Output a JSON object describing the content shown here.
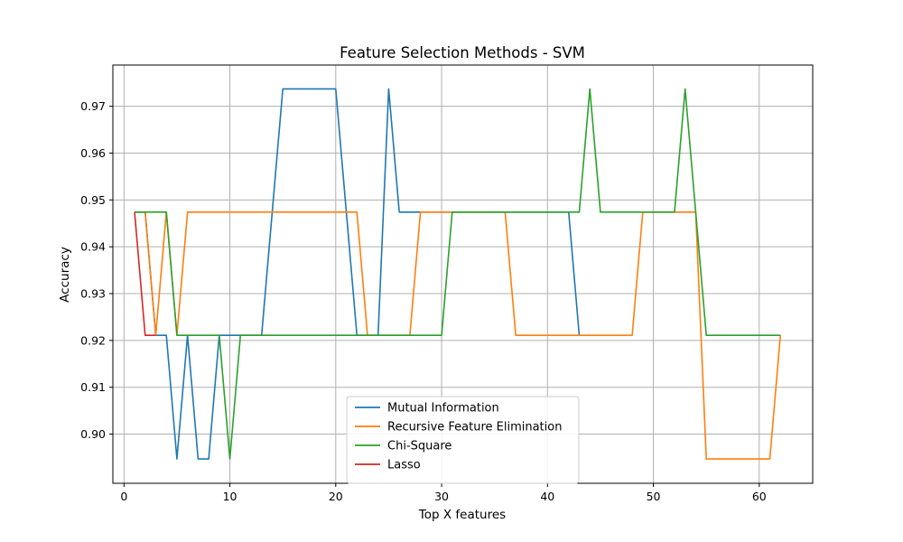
{
  "chart_data": {
    "type": "line",
    "title": "Feature Selection Methods - SVM",
    "xlabel": "Top X features",
    "ylabel": "Accuracy",
    "xlim": [
      -1.05,
      65.05
    ],
    "ylim": [
      0.8895,
      0.9788
    ],
    "xticks": [
      0,
      10,
      20,
      30,
      40,
      50,
      60
    ],
    "xtick_labels": [
      "0",
      "10",
      "20",
      "30",
      "40",
      "50",
      "60"
    ],
    "yticks": [
      0.9,
      0.91,
      0.92,
      0.93,
      0.94,
      0.95,
      0.96,
      0.97
    ],
    "ytick_labels": [
      "0.90",
      "0.91",
      "0.92",
      "0.93",
      "0.94",
      "0.95",
      "0.96",
      "0.97"
    ],
    "grid": true,
    "legend_position": "lower-center",
    "series": [
      {
        "name": "Mutual Information",
        "color": "#1f77b4",
        "x": [
          1,
          2,
          3,
          4,
          5,
          6,
          7,
          8,
          9,
          10,
          11,
          12,
          13,
          14,
          15,
          16,
          17,
          18,
          19,
          20,
          21,
          22,
          23,
          24,
          25,
          26,
          27,
          28,
          29,
          30,
          31,
          32,
          33,
          34,
          35,
          36,
          37,
          38,
          39,
          40,
          41,
          42,
          43
        ],
        "values": [
          0.9474,
          0.9474,
          0.9211,
          0.9211,
          0.8947,
          0.9211,
          0.8947,
          0.8947,
          0.9211,
          0.9211,
          0.9211,
          0.9211,
          0.9211,
          0.9474,
          0.9737,
          0.9737,
          0.9737,
          0.9737,
          0.9737,
          0.9737,
          0.9474,
          0.9211,
          0.9211,
          0.9211,
          0.9737,
          0.9474,
          0.9474,
          0.9474,
          0.9474,
          0.9474,
          0.9474,
          0.9474,
          0.9474,
          0.9474,
          0.9474,
          0.9474,
          0.9474,
          0.9474,
          0.9474,
          0.9474,
          0.9474,
          0.9474,
          0.9211
        ]
      },
      {
        "name": "Recursive Feature Elimination",
        "color": "#ff7f0e",
        "x": [
          1,
          2,
          3,
          4,
          5,
          6,
          7,
          8,
          9,
          10,
          11,
          12,
          13,
          14,
          15,
          16,
          17,
          18,
          19,
          20,
          21,
          22,
          23,
          24,
          25,
          26,
          27,
          28,
          29,
          30,
          31,
          32,
          33,
          34,
          35,
          36,
          37,
          38,
          39,
          40,
          41,
          42,
          43,
          44,
          45,
          46,
          47,
          48,
          49,
          50,
          51,
          52,
          53,
          54,
          55,
          56,
          57,
          58,
          59,
          60,
          61,
          62
        ],
        "values": [
          0.9474,
          0.9474,
          0.9211,
          0.9474,
          0.9211,
          0.9474,
          0.9474,
          0.9474,
          0.9474,
          0.9474,
          0.9474,
          0.9474,
          0.9474,
          0.9474,
          0.9474,
          0.9474,
          0.9474,
          0.9474,
          0.9474,
          0.9474,
          0.9474,
          0.9474,
          0.9211,
          0.9211,
          0.9211,
          0.9211,
          0.9211,
          0.9474,
          0.9474,
          0.9474,
          0.9474,
          0.9474,
          0.9474,
          0.9474,
          0.9474,
          0.9474,
          0.9211,
          0.9211,
          0.9211,
          0.9211,
          0.9211,
          0.9211,
          0.9211,
          0.9211,
          0.9211,
          0.9211,
          0.9211,
          0.9211,
          0.9474,
          0.9474,
          0.9474,
          0.9474,
          0.9474,
          0.9474,
          0.8947,
          0.8947,
          0.8947,
          0.8947,
          0.8947,
          0.8947,
          0.8947,
          0.9211
        ]
      },
      {
        "name": "Chi-Square",
        "color": "#2ca02c",
        "x": [
          1,
          2,
          3,
          4,
          5,
          6,
          7,
          8,
          9,
          10,
          11,
          12,
          13,
          14,
          15,
          16,
          17,
          18,
          19,
          20,
          21,
          22,
          23,
          24,
          25,
          26,
          27,
          28,
          29,
          30,
          31,
          32,
          33,
          34,
          35,
          36,
          37,
          38,
          39,
          40,
          41,
          42,
          43,
          44,
          45,
          46,
          47,
          48,
          49,
          50,
          51,
          52,
          53,
          54,
          55,
          56,
          57,
          58,
          59,
          60,
          61,
          62
        ],
        "values": [
          0.9474,
          0.9474,
          0.9474,
          0.9474,
          0.9211,
          0.9211,
          0.9211,
          0.9211,
          0.9211,
          0.8947,
          0.9211,
          0.9211,
          0.9211,
          0.9211,
          0.9211,
          0.9211,
          0.9211,
          0.9211,
          0.9211,
          0.9211,
          0.9211,
          0.9211,
          0.9211,
          0.9211,
          0.9211,
          0.9211,
          0.9211,
          0.9211,
          0.9211,
          0.9211,
          0.9474,
          0.9474,
          0.9474,
          0.9474,
          0.9474,
          0.9474,
          0.9474,
          0.9474,
          0.9474,
          0.9474,
          0.9474,
          0.9474,
          0.9474,
          0.9737,
          0.9474,
          0.9474,
          0.9474,
          0.9474,
          0.9474,
          0.9474,
          0.9474,
          0.9474,
          0.9737,
          0.9474,
          0.9211,
          0.9211,
          0.9211,
          0.9211,
          0.9211,
          0.9211,
          0.9211,
          0.9211
        ]
      },
      {
        "name": "Lasso",
        "color": "#d62728",
        "x": [
          1,
          2,
          3
        ],
        "values": [
          0.9474,
          0.9211,
          0.9211
        ]
      }
    ]
  }
}
